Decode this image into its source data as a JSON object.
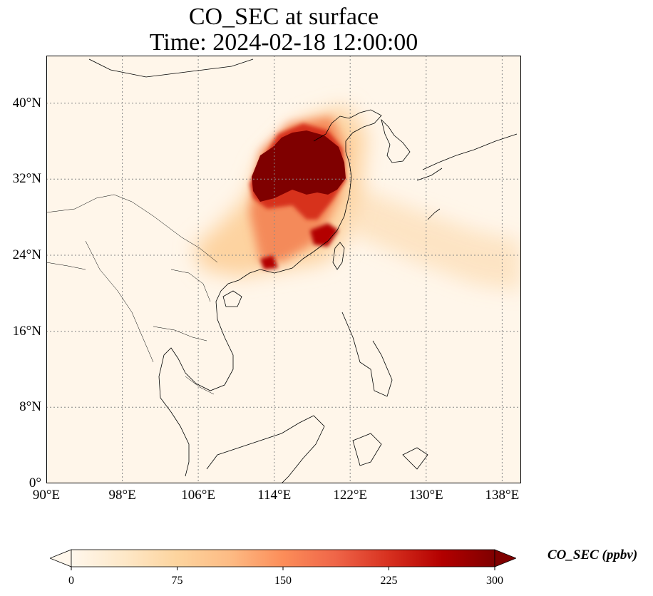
{
  "title": {
    "line1": "CO_SEC at surface",
    "line2": "Time: 2024-02-18 12:00:00"
  },
  "map": {
    "lon_range": [
      90,
      140
    ],
    "lat_range": [
      0,
      45
    ],
    "projection": "PlateCarree",
    "gridlines": "dotted",
    "coastlines": true,
    "borders": true
  },
  "axes": {
    "lat_ticks": [
      {
        "value": 40,
        "label": "40°N"
      },
      {
        "value": 32,
        "label": "32°N"
      },
      {
        "value": 24,
        "label": "24°N"
      },
      {
        "value": 16,
        "label": "16°N"
      },
      {
        "value": 8,
        "label": "8°N"
      },
      {
        "value": 0,
        "label": "0°"
      }
    ],
    "lon_ticks": [
      {
        "value": 90,
        "label": "90°E"
      },
      {
        "value": 98,
        "label": "98°E"
      },
      {
        "value": 106,
        "label": "106°E"
      },
      {
        "value": 114,
        "label": "114°E"
      },
      {
        "value": 122,
        "label": "122°E"
      },
      {
        "value": 130,
        "label": "130°E"
      },
      {
        "value": 138,
        "label": "138°E"
      }
    ]
  },
  "colorbar": {
    "label": "CO_SEC (ppbv)",
    "colormap": "OrRd",
    "min": 0,
    "max": 300,
    "extend": "both",
    "ticks": [
      {
        "value": 0,
        "label": "0"
      },
      {
        "value": 75,
        "label": "75"
      },
      {
        "value": 150,
        "label": "150"
      },
      {
        "value": 225,
        "label": "225"
      },
      {
        "value": 300,
        "label": "300"
      }
    ],
    "colors": [
      "#fff7ec",
      "#fee8c8",
      "#fdd49e",
      "#fdbb84",
      "#fc8d59",
      "#ef6548",
      "#d7301f",
      "#b30000",
      "#7f0000"
    ]
  }
}
